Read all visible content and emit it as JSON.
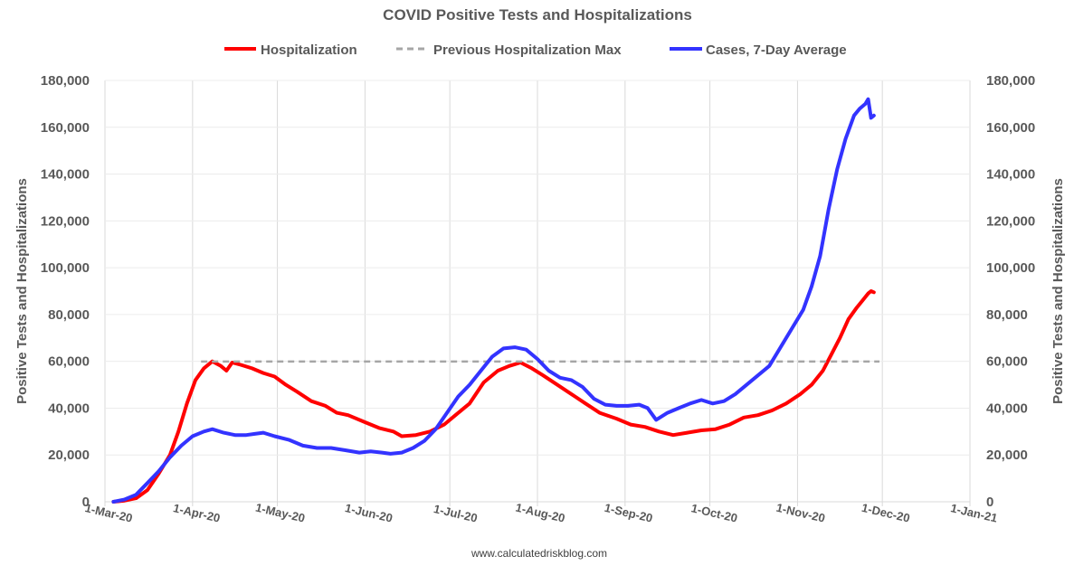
{
  "chart_data": {
    "type": "line",
    "title": "COVID Positive Tests and Hospitalizations",
    "ylabel_left": "Positive Tests and Hospitalizations",
    "ylabel_right": "Positive Tests and Hospitalizations",
    "source": "www.calculatedriskblog.com",
    "ylim": [
      0,
      180000
    ],
    "y_ticks": [
      "0",
      "20,000",
      "40,000",
      "60,000",
      "80,000",
      "100,000",
      "120,000",
      "140,000",
      "160,000",
      "180,000"
    ],
    "x_ticks": [
      "1-Mar-20",
      "1-Apr-20",
      "1-May-20",
      "1-Jun-20",
      "1-Jul-20",
      "1-Aug-20",
      "1-Sep-20",
      "1-Oct-20",
      "1-Nov-20",
      "1-Dec-20",
      "1-Jan-21"
    ],
    "grid": true,
    "legend_position": "top",
    "series": [
      {
        "name": "Hospitalization",
        "color": "#ff0000",
        "style": "solid",
        "points": [
          [
            "2020-03-04",
            0
          ],
          [
            "2020-03-08",
            500
          ],
          [
            "2020-03-12",
            1500
          ],
          [
            "2020-03-16",
            5000
          ],
          [
            "2020-03-20",
            12000
          ],
          [
            "2020-03-24",
            20000
          ],
          [
            "2020-03-27",
            30000
          ],
          [
            "2020-03-30",
            42000
          ],
          [
            "2020-04-02",
            52000
          ],
          [
            "2020-04-05",
            57000
          ],
          [
            "2020-04-08",
            60000
          ],
          [
            "2020-04-11",
            58000
          ],
          [
            "2020-04-13",
            56000
          ],
          [
            "2020-04-15",
            59500
          ],
          [
            "2020-04-18",
            58500
          ],
          [
            "2020-04-22",
            57000
          ],
          [
            "2020-04-26",
            55000
          ],
          [
            "2020-04-30",
            53500
          ],
          [
            "2020-05-04",
            50000
          ],
          [
            "2020-05-08",
            47000
          ],
          [
            "2020-05-13",
            43000
          ],
          [
            "2020-05-18",
            41000
          ],
          [
            "2020-05-22",
            38000
          ],
          [
            "2020-05-26",
            37000
          ],
          [
            "2020-06-01",
            34000
          ],
          [
            "2020-06-06",
            31500
          ],
          [
            "2020-06-11",
            30000
          ],
          [
            "2020-06-14",
            28000
          ],
          [
            "2020-06-19",
            28500
          ],
          [
            "2020-06-24",
            30000
          ],
          [
            "2020-06-29",
            33000
          ],
          [
            "2020-07-03",
            37000
          ],
          [
            "2020-07-08",
            42000
          ],
          [
            "2020-07-13",
            51000
          ],
          [
            "2020-07-18",
            56000
          ],
          [
            "2020-07-22",
            58000
          ],
          [
            "2020-07-26",
            59500
          ],
          [
            "2020-07-30",
            57000
          ],
          [
            "2020-08-03",
            54000
          ],
          [
            "2020-08-08",
            50000
          ],
          [
            "2020-08-13",
            46000
          ],
          [
            "2020-08-18",
            42000
          ],
          [
            "2020-08-23",
            38000
          ],
          [
            "2020-08-29",
            35500
          ],
          [
            "2020-09-03",
            33000
          ],
          [
            "2020-09-08",
            32000
          ],
          [
            "2020-09-13",
            30000
          ],
          [
            "2020-09-18",
            28500
          ],
          [
            "2020-09-23",
            29500
          ],
          [
            "2020-09-28",
            30500
          ],
          [
            "2020-10-03",
            31000
          ],
          [
            "2020-10-08",
            33000
          ],
          [
            "2020-10-13",
            36000
          ],
          [
            "2020-10-18",
            37000
          ],
          [
            "2020-10-23",
            39000
          ],
          [
            "2020-10-28",
            42000
          ],
          [
            "2020-11-02",
            46000
          ],
          [
            "2020-11-06",
            50000
          ],
          [
            "2020-11-10",
            56000
          ],
          [
            "2020-11-13",
            63000
          ],
          [
            "2020-11-16",
            70000
          ],
          [
            "2020-11-19",
            78000
          ],
          [
            "2020-11-22",
            83000
          ],
          [
            "2020-11-24",
            86000
          ],
          [
            "2020-11-26",
            89000
          ],
          [
            "2020-11-27",
            90000
          ],
          [
            "2020-11-28",
            89500
          ]
        ]
      },
      {
        "name": "Previous Hospitalization Max",
        "color": "#a6a6a6",
        "style": "dashed",
        "points": [
          [
            "2020-04-04",
            59900
          ],
          [
            "2020-11-30",
            59900
          ]
        ]
      },
      {
        "name": "Cases, 7-Day Average",
        "color": "#3333ff",
        "style": "solid",
        "points": [
          [
            "2020-03-04",
            0
          ],
          [
            "2020-03-08",
            1000
          ],
          [
            "2020-03-12",
            3000
          ],
          [
            "2020-03-16",
            8000
          ],
          [
            "2020-03-20",
            13000
          ],
          [
            "2020-03-24",
            19000
          ],
          [
            "2020-03-28",
            24000
          ],
          [
            "2020-04-01",
            28000
          ],
          [
            "2020-04-05",
            30000
          ],
          [
            "2020-04-08",
            31000
          ],
          [
            "2020-04-12",
            29500
          ],
          [
            "2020-04-16",
            28500
          ],
          [
            "2020-04-20",
            28500
          ],
          [
            "2020-04-23",
            29000
          ],
          [
            "2020-04-26",
            29500
          ],
          [
            "2020-04-30",
            28000
          ],
          [
            "2020-05-05",
            26500
          ],
          [
            "2020-05-10",
            24000
          ],
          [
            "2020-05-15",
            23000
          ],
          [
            "2020-05-20",
            23000
          ],
          [
            "2020-05-25",
            22000
          ],
          [
            "2020-05-30",
            21000
          ],
          [
            "2020-06-03",
            21500
          ],
          [
            "2020-06-07",
            21000
          ],
          [
            "2020-06-10",
            20500
          ],
          [
            "2020-06-14",
            21000
          ],
          [
            "2020-06-18",
            23000
          ],
          [
            "2020-06-22",
            26000
          ],
          [
            "2020-06-26",
            31000
          ],
          [
            "2020-06-30",
            38000
          ],
          [
            "2020-07-04",
            45000
          ],
          [
            "2020-07-08",
            50000
          ],
          [
            "2020-07-12",
            56000
          ],
          [
            "2020-07-16",
            62000
          ],
          [
            "2020-07-20",
            65500
          ],
          [
            "2020-07-24",
            66000
          ],
          [
            "2020-07-28",
            65000
          ],
          [
            "2020-08-01",
            61000
          ],
          [
            "2020-08-05",
            56000
          ],
          [
            "2020-08-09",
            53000
          ],
          [
            "2020-08-13",
            52000
          ],
          [
            "2020-08-17",
            49000
          ],
          [
            "2020-08-21",
            44000
          ],
          [
            "2020-08-25",
            41500
          ],
          [
            "2020-08-29",
            41000
          ],
          [
            "2020-09-02",
            41000
          ],
          [
            "2020-09-06",
            41500
          ],
          [
            "2020-09-09",
            40000
          ],
          [
            "2020-09-12",
            35000
          ],
          [
            "2020-09-16",
            38000
          ],
          [
            "2020-09-20",
            40000
          ],
          [
            "2020-09-24",
            42000
          ],
          [
            "2020-09-28",
            43500
          ],
          [
            "2020-10-02",
            42000
          ],
          [
            "2020-10-06",
            43000
          ],
          [
            "2020-10-10",
            46000
          ],
          [
            "2020-10-14",
            50000
          ],
          [
            "2020-10-18",
            54000
          ],
          [
            "2020-10-22",
            58000
          ],
          [
            "2020-10-26",
            66000
          ],
          [
            "2020-10-30",
            74000
          ],
          [
            "2020-11-03",
            82000
          ],
          [
            "2020-11-06",
            92000
          ],
          [
            "2020-11-09",
            105000
          ],
          [
            "2020-11-12",
            125000
          ],
          [
            "2020-11-15",
            142000
          ],
          [
            "2020-11-18",
            155000
          ],
          [
            "2020-11-21",
            165000
          ],
          [
            "2020-11-23",
            168000
          ],
          [
            "2020-11-25",
            170000
          ],
          [
            "2020-11-26",
            172000
          ],
          [
            "2020-11-27",
            164000
          ],
          [
            "2020-11-28",
            165000
          ]
        ]
      }
    ]
  }
}
